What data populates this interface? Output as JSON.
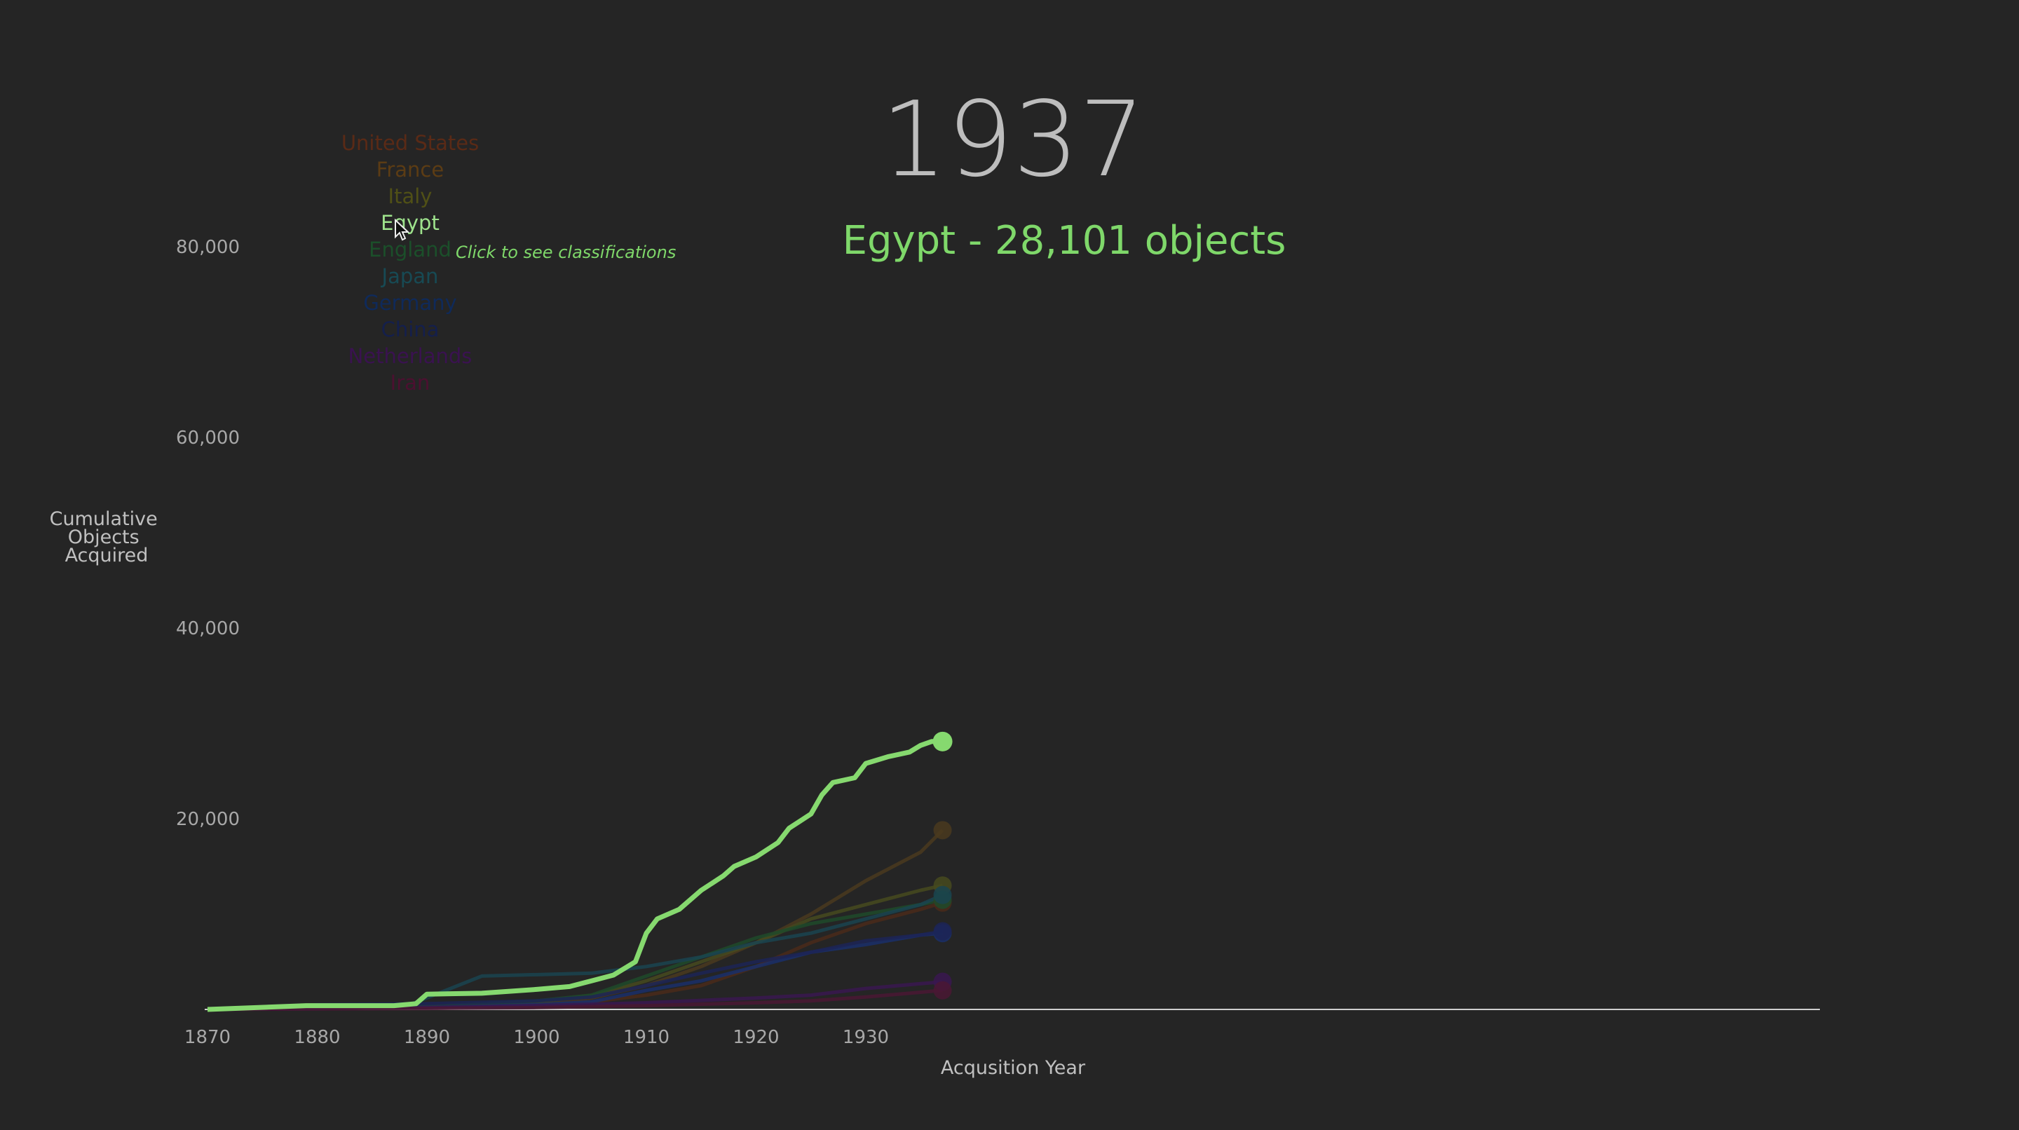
{
  "header": {
    "year": "1937",
    "subtitle": "Egypt - 28,101 objects",
    "subtitle_color": "#7fd86a"
  },
  "legend": {
    "hint": "Click to see classifications",
    "items": [
      {
        "label": "United States",
        "color": "#5a2a16"
      },
      {
        "label": "France",
        "color": "#5c3c14"
      },
      {
        "label": "Italy",
        "color": "#505016"
      },
      {
        "label": "Egypt",
        "color": "#9ee28c",
        "active": true
      },
      {
        "label": "England",
        "color": "#1b4f2a"
      },
      {
        "label": "Japan",
        "color": "#174a54"
      },
      {
        "label": "Germany",
        "color": "#0f2a5a"
      },
      {
        "label": "China",
        "color": "#141f4c"
      },
      {
        "label": "Netherlands",
        "color": "#3a1250"
      },
      {
        "label": "Iran",
        "color": "#4c1030"
      }
    ]
  },
  "chart_data": {
    "type": "line",
    "xlabel": "Acqusition Year",
    "ylabel": "Cumulative Objects Acquired",
    "xlim": [
      1870,
      2010
    ],
    "ylim": [
      0,
      80000
    ],
    "x_ticks": [
      "1870",
      "1880",
      "1890",
      "1900",
      "1910",
      "1920",
      "1930"
    ],
    "y_ticks": [
      {
        "value": 20000,
        "label": "20,000"
      },
      {
        "value": 40000,
        "label": "40,000"
      },
      {
        "value": 60000,
        "label": "60,000"
      },
      {
        "value": 80000,
        "label": "80,000"
      }
    ],
    "highlight": "Egypt",
    "series": [
      {
        "name": "Egypt",
        "color": "#86d96f",
        "points": [
          [
            1870,
            0
          ],
          [
            1879,
            400
          ],
          [
            1887,
            400
          ],
          [
            1889,
            600
          ],
          [
            1890,
            1600
          ],
          [
            1895,
            1700
          ],
          [
            1900,
            2100
          ],
          [
            1903,
            2400
          ],
          [
            1905,
            3000
          ],
          [
            1907,
            3600
          ],
          [
            1909,
            5000
          ],
          [
            1910,
            8000
          ],
          [
            1911,
            9500
          ],
          [
            1913,
            10500
          ],
          [
            1915,
            12500
          ],
          [
            1917,
            14000
          ],
          [
            1918,
            15000
          ],
          [
            1920,
            16000
          ],
          [
            1922,
            17500
          ],
          [
            1923,
            19000
          ],
          [
            1925,
            20500
          ],
          [
            1926,
            22500
          ],
          [
            1927,
            23800
          ],
          [
            1929,
            24300
          ],
          [
            1930,
            25800
          ],
          [
            1932,
            26500
          ],
          [
            1934,
            27000
          ],
          [
            1935,
            27700
          ],
          [
            1936,
            28100
          ],
          [
            1937,
            28101
          ]
        ]
      },
      {
        "name": "France",
        "color": "#4a3a1e",
        "points": [
          [
            1870,
            0
          ],
          [
            1890,
            300
          ],
          [
            1900,
            600
          ],
          [
            1905,
            1200
          ],
          [
            1910,
            2500
          ],
          [
            1915,
            4500
          ],
          [
            1920,
            7000
          ],
          [
            1925,
            10000
          ],
          [
            1930,
            13500
          ],
          [
            1935,
            16500
          ],
          [
            1937,
            18800
          ]
        ]
      },
      {
        "name": "United States",
        "color": "#4a2a1a",
        "points": [
          [
            1870,
            0
          ],
          [
            1890,
            200
          ],
          [
            1900,
            500
          ],
          [
            1905,
            800
          ],
          [
            1910,
            1500
          ],
          [
            1915,
            2500
          ],
          [
            1920,
            4500
          ],
          [
            1925,
            7000
          ],
          [
            1930,
            9000
          ],
          [
            1935,
            10500
          ],
          [
            1937,
            11200
          ]
        ]
      },
      {
        "name": "Italy",
        "color": "#464a1e",
        "points": [
          [
            1870,
            0
          ],
          [
            1890,
            300
          ],
          [
            1900,
            800
          ],
          [
            1905,
            1400
          ],
          [
            1910,
            3000
          ],
          [
            1915,
            5000
          ],
          [
            1920,
            7000
          ],
          [
            1925,
            9500
          ],
          [
            1930,
            11000
          ],
          [
            1935,
            12500
          ],
          [
            1937,
            13000
          ]
        ]
      },
      {
        "name": "England",
        "color": "#1e4a2a",
        "points": [
          [
            1870,
            0
          ],
          [
            1890,
            300
          ],
          [
            1900,
            900
          ],
          [
            1905,
            1500
          ],
          [
            1910,
            3500
          ],
          [
            1915,
            5500
          ],
          [
            1920,
            7500
          ],
          [
            1925,
            9000
          ],
          [
            1930,
            10000
          ],
          [
            1935,
            11000
          ],
          [
            1937,
            11500
          ]
        ]
      },
      {
        "name": "Japan",
        "color": "#1a4450",
        "points": [
          [
            1870,
            0
          ],
          [
            1888,
            300
          ],
          [
            1895,
            3500
          ],
          [
            1905,
            3800
          ],
          [
            1910,
            4500
          ],
          [
            1915,
            5500
          ],
          [
            1920,
            7000
          ],
          [
            1925,
            8000
          ],
          [
            1930,
            9500
          ],
          [
            1935,
            11000
          ],
          [
            1937,
            12000
          ]
        ]
      },
      {
        "name": "Germany",
        "color": "#1a2f6a",
        "points": [
          [
            1870,
            0
          ],
          [
            1890,
            200
          ],
          [
            1900,
            500
          ],
          [
            1905,
            800
          ],
          [
            1910,
            2000
          ],
          [
            1915,
            3000
          ],
          [
            1920,
            4500
          ],
          [
            1925,
            6000
          ],
          [
            1930,
            6800
          ],
          [
            1935,
            7800
          ],
          [
            1937,
            8000
          ]
        ]
      },
      {
        "name": "China",
        "color": "#1c2456",
        "points": [
          [
            1870,
            0
          ],
          [
            1880,
            500
          ],
          [
            1890,
            600
          ],
          [
            1900,
            900
          ],
          [
            1905,
            1300
          ],
          [
            1910,
            2500
          ],
          [
            1915,
            3800
          ],
          [
            1920,
            5000
          ],
          [
            1925,
            6000
          ],
          [
            1930,
            7200
          ],
          [
            1935,
            7800
          ],
          [
            1937,
            8200
          ]
        ]
      },
      {
        "name": "Netherlands",
        "color": "#3a1850",
        "points": [
          [
            1870,
            0
          ],
          [
            1890,
            200
          ],
          [
            1900,
            400
          ],
          [
            1910,
            700
          ],
          [
            1920,
            1200
          ],
          [
            1925,
            1500
          ],
          [
            1930,
            2200
          ],
          [
            1935,
            2700
          ],
          [
            1937,
            2900
          ]
        ]
      },
      {
        "name": "Iran",
        "color": "#4a1834",
        "points": [
          [
            1870,
            0
          ],
          [
            1890,
            100
          ],
          [
            1900,
            200
          ],
          [
            1910,
            400
          ],
          [
            1920,
            700
          ],
          [
            1925,
            900
          ],
          [
            1930,
            1300
          ],
          [
            1935,
            1800
          ],
          [
            1937,
            2000
          ]
        ]
      }
    ]
  }
}
